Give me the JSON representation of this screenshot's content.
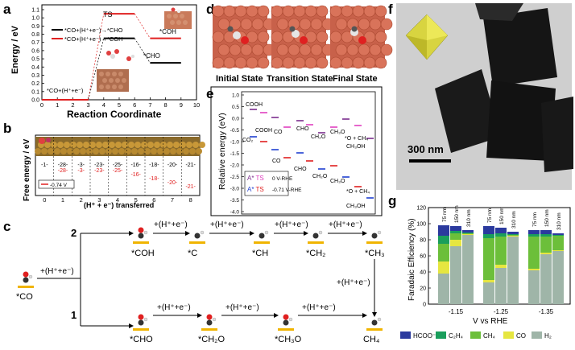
{
  "panels": {
    "a": {
      "letter": "a",
      "title": "TS",
      "ylabel": "Energy / eV",
      "xlabel": "Reaction Coordinate",
      "legend": [
        "*CO+(H⁺+e⁻)→*CHO",
        "*CO+(H⁺+e⁻)→*COH"
      ],
      "label_start": "*CO+(H⁺+e⁻)",
      "label_coh": "*COH",
      "label_cho": "*CHO",
      "yticks": [
        "0.0",
        "0.1",
        "0.2",
        "0.3",
        "0.4",
        "0.5",
        "0.6",
        "0.7",
        "0.8",
        "0.9",
        "1.0",
        "1.1"
      ],
      "xticks": [
        "0",
        "1",
        "2",
        "3",
        "4",
        "5",
        "6",
        "7",
        "8",
        "9",
        "10"
      ],
      "colors": {
        "cho": "#000000",
        "coh": "#e02020"
      }
    },
    "b": {
      "letter": "b",
      "ylabel": "Free energy / eV",
      "xlabel": "(H⁺ + e⁻) transferred",
      "legend": "-0.74 V",
      "xticks": [
        "0",
        "1",
        "2",
        "3",
        "4",
        "5",
        "6",
        "7",
        "8"
      ],
      "black_values": [
        "-1-",
        "-28-",
        "-3-",
        "-23-",
        "-25-",
        "-16-",
        "-18-",
        "-20-",
        "-21-"
      ],
      "red_values": [
        "-28-",
        "-3-",
        "-23-",
        "-25-",
        "-16-",
        "-18-",
        "-20-",
        "-21-"
      ]
    },
    "c": {
      "letter": "c",
      "path2": "2",
      "path1": "1",
      "step": "+(H⁺+e⁻)",
      "species_start": "*CO",
      "top_species": [
        "*COH",
        "*C",
        "*CH",
        "*CH₂",
        "*CH₃"
      ],
      "bottom_species": [
        "*CHO",
        "*CH₂O",
        "*CH₃O",
        "CH₄"
      ]
    },
    "d": {
      "letter": "d",
      "labels": [
        "Initial State",
        "Transition State",
        "Final State"
      ]
    },
    "e": {
      "letter": "e",
      "ylabel": "Relative energy (eV)",
      "yticks": [
        "1.0",
        "0.5",
        "0.0",
        "-0.5",
        "-1.0",
        "-1.5",
        "-2.0",
        "-2.5",
        "-3.0",
        "-3.5",
        "-4.0"
      ],
      "species": [
        "COOH",
        "CO₂",
        "COOH",
        "CO",
        "CHO",
        "CH₂O",
        "CH₃O",
        "*O + CH₄",
        "CH₃OH",
        "CO",
        "CHO",
        "CH₂O",
        "CH₃O",
        "*O + CH₄",
        "CH₃OH"
      ],
      "legend": [
        {
          "a": "A*",
          "ts": "TS",
          "v": "0 V-RHE"
        },
        {
          "a": "A*",
          "ts": "TS",
          "v": "-0.71 V-RHE"
        }
      ],
      "colors": {
        "a0": "#7b2d8e",
        "ts0": "#e040c0",
        "a1": "#2040d0",
        "ts1": "#e02020"
      }
    },
    "f": {
      "letter": "f",
      "scale": "300 nm"
    },
    "g": {
      "letter": "g",
      "ylabel": "Faradaic Efficiency (%)",
      "xlabel": "V vs RHE",
      "yticks": [
        "0",
        "20",
        "40",
        "60",
        "80",
        "100",
        "120"
      ],
      "groups": [
        "-1.15",
        "-1.25",
        "-1.35"
      ],
      "sizes": [
        "75 nm",
        "150 nm",
        "310 nm"
      ],
      "legend": [
        "HCOO⁻",
        "C₂H₄",
        "CH₄",
        "CO",
        "H₂"
      ],
      "colors": [
        "#2b3a9e",
        "#1a9e5c",
        "#6cbf3a",
        "#e6e640",
        "#9fb5a8"
      ]
    }
  },
  "chart_data": [
    {
      "type": "line",
      "title": "TS",
      "xlabel": "Reaction Coordinate",
      "ylabel": "Energy / eV",
      "xlim": [
        0,
        10
      ],
      "ylim": [
        0,
        1.1
      ],
      "series": [
        {
          "name": "*CO+(H⁺+e⁻)→*CHO",
          "x": [
            0,
            3,
            4,
            6,
            7,
            9
          ],
          "y": [
            0.0,
            0.0,
            0.75,
            0.75,
            0.45,
            0.45
          ]
        },
        {
          "name": "*CO+(H⁺+e⁻)→*COH",
          "x": [
            0,
            3,
            4,
            6,
            7,
            9
          ],
          "y": [
            0.0,
            0.0,
            1.05,
            1.05,
            0.75,
            0.75
          ]
        }
      ]
    },
    {
      "type": "bar",
      "xlabel": "V vs RHE",
      "ylabel": "Faradaic Efficiency (%)",
      "ylim": [
        0,
        120
      ],
      "categories": [
        "-1.15 75 nm",
        "-1.15 150 nm",
        "-1.15 310 nm",
        "-1.25 75 nm",
        "-1.25 150 nm",
        "-1.25 310 nm",
        "-1.35 75 nm",
        "-1.35 150 nm",
        "-1.35 310 nm"
      ],
      "series": [
        {
          "name": "H₂",
          "values": [
            38,
            72,
            86,
            27,
            45,
            84,
            42,
            62,
            66
          ]
        },
        {
          "name": "CO",
          "values": [
            15,
            8,
            1,
            3,
            4,
            1,
            2,
            2,
            1
          ]
        },
        {
          "name": "CH₄",
          "values": [
            22,
            8,
            1,
            52,
            35,
            1,
            40,
            20,
            18
          ]
        },
        {
          "name": "C₂H₄",
          "values": [
            10,
            3,
            1,
            5,
            4,
            1,
            3,
            3,
            1
          ]
        },
        {
          "name": "HCOO⁻",
          "values": [
            13,
            6,
            3,
            10,
            7,
            3,
            5,
            5,
            2
          ]
        }
      ]
    }
  ]
}
